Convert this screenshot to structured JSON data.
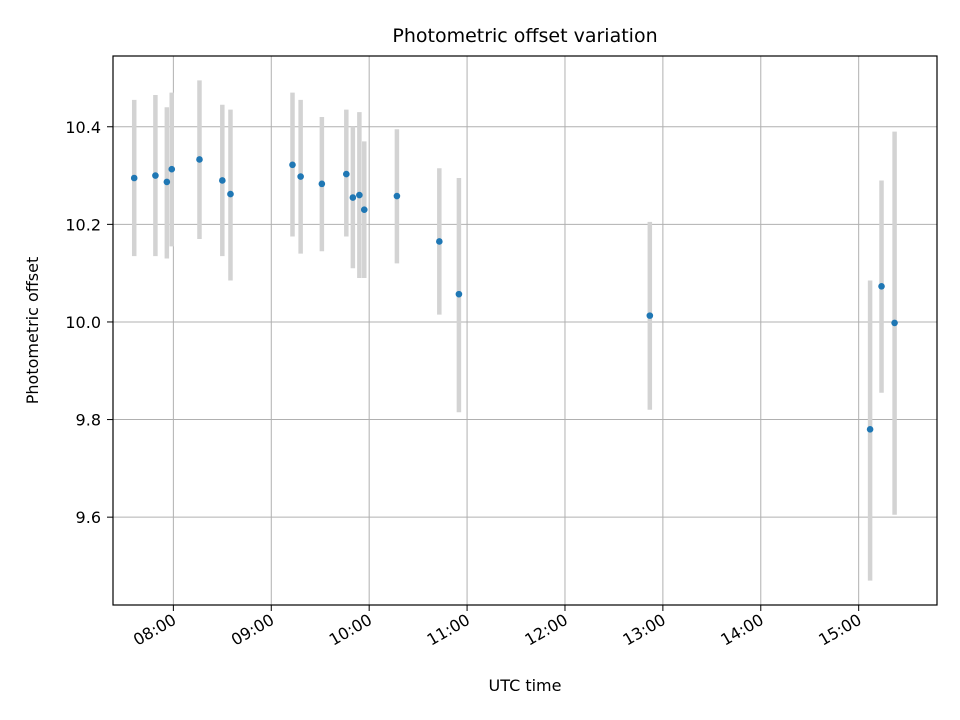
{
  "chart_data": {
    "type": "scatter",
    "title": "Photometric offset variation",
    "xlabel": "UTC time",
    "ylabel": "Photometric offset",
    "xlim": [
      "07:23",
      "15:48"
    ],
    "ylim": [
      9.42,
      10.545
    ],
    "grid": true,
    "x_ticks": [
      "08:00",
      "09:00",
      "10:00",
      "11:00",
      "12:00",
      "13:00",
      "14:00",
      "15:00"
    ],
    "y_ticks": [
      9.6,
      9.8,
      10.0,
      10.2,
      10.4
    ],
    "y_tick_labels": [
      "9.6",
      "9.8",
      "10.0",
      "10.2",
      "10.4"
    ],
    "point_color": "#1f77b4",
    "errorbar_color": "#d3d3d3",
    "points": [
      {
        "x": "07:36",
        "y": 10.295,
        "lo": 10.135,
        "hi": 10.455
      },
      {
        "x": "07:49",
        "y": 10.3,
        "lo": 10.135,
        "hi": 10.465
      },
      {
        "x": "07:56",
        "y": 10.287,
        "lo": 10.13,
        "hi": 10.44
      },
      {
        "x": "07:59",
        "y": 10.313,
        "lo": 10.155,
        "hi": 10.47
      },
      {
        "x": "08:16",
        "y": 10.333,
        "lo": 10.17,
        "hi": 10.495
      },
      {
        "x": "08:30",
        "y": 10.29,
        "lo": 10.135,
        "hi": 10.445
      },
      {
        "x": "08:35",
        "y": 10.262,
        "lo": 10.085,
        "hi": 10.435
      },
      {
        "x": "09:13",
        "y": 10.322,
        "lo": 10.175,
        "hi": 10.47
      },
      {
        "x": "09:18",
        "y": 10.298,
        "lo": 10.14,
        "hi": 10.455
      },
      {
        "x": "09:31",
        "y": 10.283,
        "lo": 10.145,
        "hi": 10.42
      },
      {
        "x": "09:46",
        "y": 10.303,
        "lo": 10.175,
        "hi": 10.435
      },
      {
        "x": "09:50",
        "y": 10.255,
        "lo": 10.11,
        "hi": 10.4
      },
      {
        "x": "09:54",
        "y": 10.26,
        "lo": 10.09,
        "hi": 10.43
      },
      {
        "x": "09:57",
        "y": 10.23,
        "lo": 10.09,
        "hi": 10.37
      },
      {
        "x": "10:17",
        "y": 10.258,
        "lo": 10.12,
        "hi": 10.395
      },
      {
        "x": "10:43",
        "y": 10.165,
        "lo": 10.015,
        "hi": 10.315
      },
      {
        "x": "10:55",
        "y": 10.057,
        "lo": 9.815,
        "hi": 10.295
      },
      {
        "x": "12:52",
        "y": 10.013,
        "lo": 9.82,
        "hi": 10.205
      },
      {
        "x": "15:07",
        "y": 9.78,
        "lo": 9.47,
        "hi": 10.085
      },
      {
        "x": "15:14",
        "y": 10.073,
        "lo": 9.855,
        "hi": 10.29
      },
      {
        "x": "15:22",
        "y": 9.998,
        "lo": 9.605,
        "hi": 10.39
      }
    ]
  }
}
